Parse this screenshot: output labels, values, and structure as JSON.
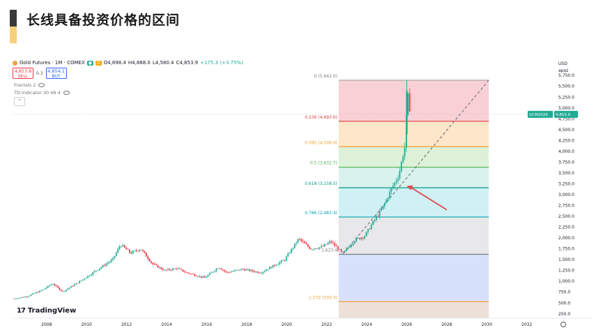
{
  "slide": {
    "title": "长线具备投资价格的区间"
  },
  "header": {
    "symbol": "Gold Futures · 1M · COMEX",
    "badge_g": "●",
    "badge_d": "D",
    "open": "O4,698.4",
    "high": "H4,888.0",
    "low": "L4,580.4",
    "close": "C4,853.9",
    "change": "+175.3 (+3.75%)",
    "sell_price": "4,853.8",
    "sell_label": "SELL",
    "spread": "0.3",
    "buy_price": "4,854.1",
    "buy_label": "BUY"
  },
  "indicators": {
    "fractals": "Fractals 2",
    "td": "TD Indicator 30 48 4"
  },
  "logo": {
    "text": "TradingView",
    "mark": "17"
  },
  "price_axis": {
    "currency": "USD",
    "scale_label": "apoz"
  },
  "current_tag": {
    "symbol": "GCM2026",
    "price": "4,853.9"
  },
  "colors": {
    "up": "#22ab94",
    "down": "#f23645",
    "arrow": "#e0454a"
  },
  "chart_data": {
    "type": "candlestick",
    "title": "",
    "xlabel": "",
    "ylabel": "",
    "x_ticks": [
      "2008",
      "2010",
      "2012",
      "2014",
      "2016",
      "2018",
      "2020",
      "2022",
      "2024",
      "2026",
      "2028",
      "2030",
      "2032"
    ],
    "y_ticks": [
      "5,750.0",
      "5,500.0",
      "5,250.0",
      "5,000.0",
      "4,750.0",
      "4,500.0",
      "4,250.0",
      "4,000.0",
      "3,750.0",
      "3,500.0",
      "3,250.0",
      "3,000.0",
      "2,750.0",
      "2,500.0",
      "2,250.0",
      "2,000.0",
      "1,750.0",
      "1,500.0",
      "1,250.0",
      "1,000.0",
      "750.0",
      "500.0",
      "250.0"
    ],
    "ylim": [
      150,
      5850
    ],
    "xlim": [
      2006.3,
      2033.3
    ],
    "price_path": [
      [
        2006.4,
        600
      ],
      [
        2007.0,
        650
      ],
      [
        2007.8,
        800
      ],
      [
        2008.3,
        950
      ],
      [
        2008.8,
        760
      ],
      [
        2009.5,
        950
      ],
      [
        2010.0,
        1100
      ],
      [
        2010.8,
        1350
      ],
      [
        2011.3,
        1500
      ],
      [
        2011.7,
        1850
      ],
      [
        2012.2,
        1650
      ],
      [
        2012.7,
        1750
      ],
      [
        2013.3,
        1400
      ],
      [
        2013.9,
        1250
      ],
      [
        2014.5,
        1300
      ],
      [
        2015.0,
        1200
      ],
      [
        2015.9,
        1080
      ],
      [
        2016.6,
        1330
      ],
      [
        2017.0,
        1200
      ],
      [
        2017.8,
        1280
      ],
      [
        2018.7,
        1200
      ],
      [
        2019.3,
        1350
      ],
      [
        2019.9,
        1500
      ],
      [
        2020.6,
        1980
      ],
      [
        2021.2,
        1750
      ],
      [
        2021.8,
        1800
      ],
      [
        2022.2,
        1920
      ],
      [
        2022.8,
        1640
      ],
      [
        2023.4,
        1950
      ],
      [
        2023.9,
        2050
      ],
      [
        2024.3,
        2350
      ],
      [
        2024.8,
        2700
      ],
      [
        2025.2,
        3100
      ],
      [
        2025.6,
        3450
      ],
      [
        2025.9,
        4100
      ],
      [
        2026.05,
        5300
      ],
      [
        2026.2,
        4854
      ]
    ],
    "fibonacci": [
      {
        "ratio": "0",
        "label": "0 (5,642.0)",
        "price": 5642.0,
        "line_color": "#9e9e9e",
        "fill": "#f8c8cf",
        "text_color": "#787b86"
      },
      {
        "ratio": "0.236",
        "label": "0.236 (4,693.6)",
        "price": 4693.6,
        "line_color": "#e03a3e",
        "fill": "#fde2c0",
        "text_color": "#e03a3e"
      },
      {
        "ratio": "0.382",
        "label": "0.382 (4,106.9)",
        "price": 4106.9,
        "line_color": "#f0a030",
        "fill": "#d6efd0",
        "text_color": "#f0a030"
      },
      {
        "ratio": "0.5",
        "label": "0.5 (3,632.7)",
        "price": 3632.7,
        "line_color": "#4caf50",
        "fill": "#d2f0ea",
        "text_color": "#4caf50"
      },
      {
        "ratio": "0.618",
        "label": "0.618 (3,158.5)",
        "price": 3158.5,
        "line_color": "#089981",
        "fill": "#c8eef2",
        "text_color": "#089981"
      },
      {
        "ratio": "0.786",
        "label": "0.786 (2,483.4)",
        "price": 2483.4,
        "line_color": "#00a3b4",
        "fill": "#e4e4e6",
        "text_color": "#00a3b4"
      },
      {
        "ratio": "1",
        "label": "1,623.4",
        "price": 1623.4,
        "line_color": "#787b86",
        "fill": "#d0dcfa",
        "text_color": "#787b86"
      },
      {
        "ratio": "1.272",
        "label": "1.272 (530.3)",
        "price": 530.3,
        "line_color": "#f0a030",
        "fill": "#e9dad2",
        "text_color": "#f0a030"
      }
    ],
    "fib_x_range": [
      2022.6,
      2030.1
    ],
    "trend_line": {
      "from": [
        2022.8,
        1623.4
      ],
      "to": [
        2030.1,
        5642.0
      ]
    },
    "arrow": {
      "from": [
        2028.0,
        2650
      ],
      "to": [
        2026.0,
        3200
      ]
    }
  }
}
